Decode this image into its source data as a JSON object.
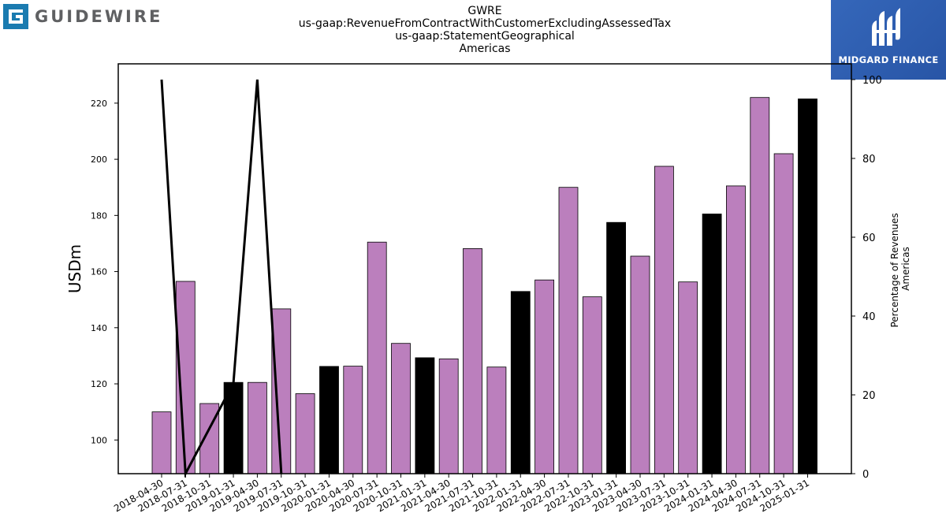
{
  "brand": {
    "company_logo_text": "GUIDEWIRE",
    "company_logo_color": "#1a7bb0",
    "publisher": "MIDGARD FINANCE",
    "publisher_color": "#2c5fb0"
  },
  "chart_data": {
    "type": "bar",
    "title_lines": [
      "GWRE",
      "us-gaap:RevenueFromContractWithCustomerExcludingAssessedTax",
      "us-gaap:StatementGeographical",
      "Americas"
    ],
    "ylabel": "USDm",
    "y2label_lines": [
      "Percentage of Revenues",
      "Americas"
    ],
    "ylim": [
      88,
      234
    ],
    "y2lim": [
      0,
      104
    ],
    "yticks": [
      100,
      120,
      140,
      160,
      180,
      200,
      220
    ],
    "y2ticks": [
      0,
      20,
      40,
      60,
      80,
      100
    ],
    "categories": [
      "2018-04-30",
      "2018-07-31",
      "2018-10-31",
      "2019-01-31",
      "2019-04-30",
      "2019-07-31",
      "2019-10-31",
      "2020-01-31",
      "2020-04-30",
      "2020-07-31",
      "2020-10-31",
      "2021-01-31",
      "2021-04-30",
      "2021-07-31",
      "2021-10-31",
      "2022-01-31",
      "2022-04-30",
      "2022-07-31",
      "2022-10-31",
      "2023-01-31",
      "2023-04-30",
      "2023-07-31",
      "2023-10-31",
      "2024-01-31",
      "2024-04-30",
      "2024-07-31",
      "2024-10-31",
      "2025-01-31"
    ],
    "values": [
      110,
      156.5,
      113,
      120.5,
      120.5,
      146.7,
      116.5,
      126.2,
      126.3,
      170.5,
      134.4,
      129.3,
      128.9,
      168.2,
      126.0,
      152.9,
      157.0,
      190.0,
      151.0,
      177.5,
      165.5,
      197.5,
      156.3,
      180.5,
      190.5,
      222.0,
      202.0,
      221.5
    ],
    "bar_colors": [
      "#bb7fbd",
      "#bb7fbd",
      "#bb7fbd",
      "#000000",
      "#bb7fbd",
      "#bb7fbd",
      "#bb7fbd",
      "#000000",
      "#bb7fbd",
      "#bb7fbd",
      "#bb7fbd",
      "#000000",
      "#bb7fbd",
      "#bb7fbd",
      "#bb7fbd",
      "#000000",
      "#bb7fbd",
      "#bb7fbd",
      "#bb7fbd",
      "#000000",
      "#bb7fbd",
      "#bb7fbd",
      "#bb7fbd",
      "#000000",
      "#bb7fbd",
      "#bb7fbd",
      "#bb7fbd",
      "#000000"
    ],
    "line_percent": [
      {
        "x": "2018-04-30",
        "y": 100
      },
      {
        "x": "2018-07-31",
        "y": 0
      },
      {
        "x": "2019-01-31",
        "y": 23
      },
      {
        "x": "2019-04-30",
        "y": 100
      },
      {
        "x": "2019-07-31",
        "y": 0
      }
    ],
    "line_color": "#000000",
    "grid": false
  }
}
